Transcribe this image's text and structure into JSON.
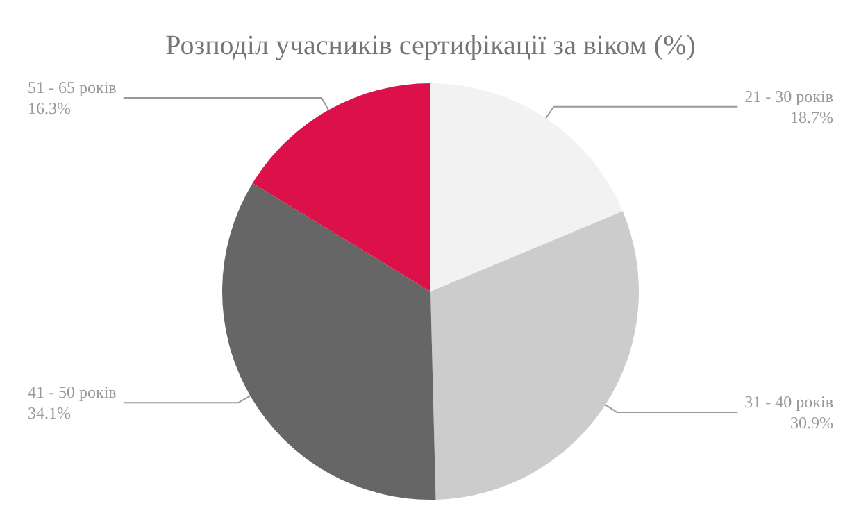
{
  "chart_data": {
    "type": "pie",
    "title": "Розподіл учасників сертифікації за віком (%)",
    "categories": [
      "21 - 30 років",
      "31 - 40 років",
      "41 - 50 років",
      "51 - 65 років"
    ],
    "values": [
      18.7,
      30.9,
      34.1,
      16.3
    ],
    "value_labels": [
      "18.7%",
      "30.9%",
      "34.1%",
      "16.3%"
    ],
    "colors": [
      "#f2f2f2",
      "#cccccc",
      "#666666",
      "#dc1149"
    ],
    "legend": false
  }
}
